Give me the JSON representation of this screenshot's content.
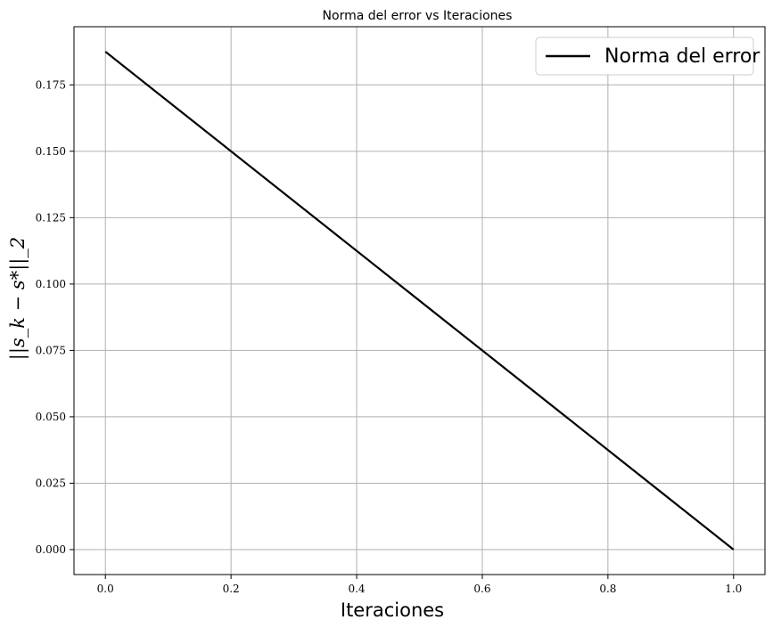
{
  "chart_data": {
    "type": "line",
    "title": "Norma del error vs Iteraciones",
    "xlabel": "Iteraciones",
    "ylabel": "||s_k − s*||_2",
    "xlim": [
      -0.05,
      1.05
    ],
    "ylim": [
      -0.0094,
      0.1969
    ],
    "xticks": [
      0.0,
      0.2,
      0.4,
      0.6,
      0.8,
      1.0
    ],
    "xtick_labels": [
      "0.0",
      "0.2",
      "0.4",
      "0.6",
      "0.8",
      "1.0"
    ],
    "yticks": [
      0.0,
      0.025,
      0.05,
      0.075,
      0.1,
      0.125,
      0.15,
      0.175
    ],
    "ytick_labels": [
      "0.000",
      "0.025",
      "0.050",
      "0.075",
      "0.100",
      "0.125",
      "0.150",
      "0.175"
    ],
    "grid": true,
    "legend_position": "top-right",
    "series": [
      {
        "name": "Norma del error",
        "color": "#000000",
        "x": [
          0,
          1
        ],
        "y": [
          0.1875,
          0.0
        ]
      }
    ]
  }
}
